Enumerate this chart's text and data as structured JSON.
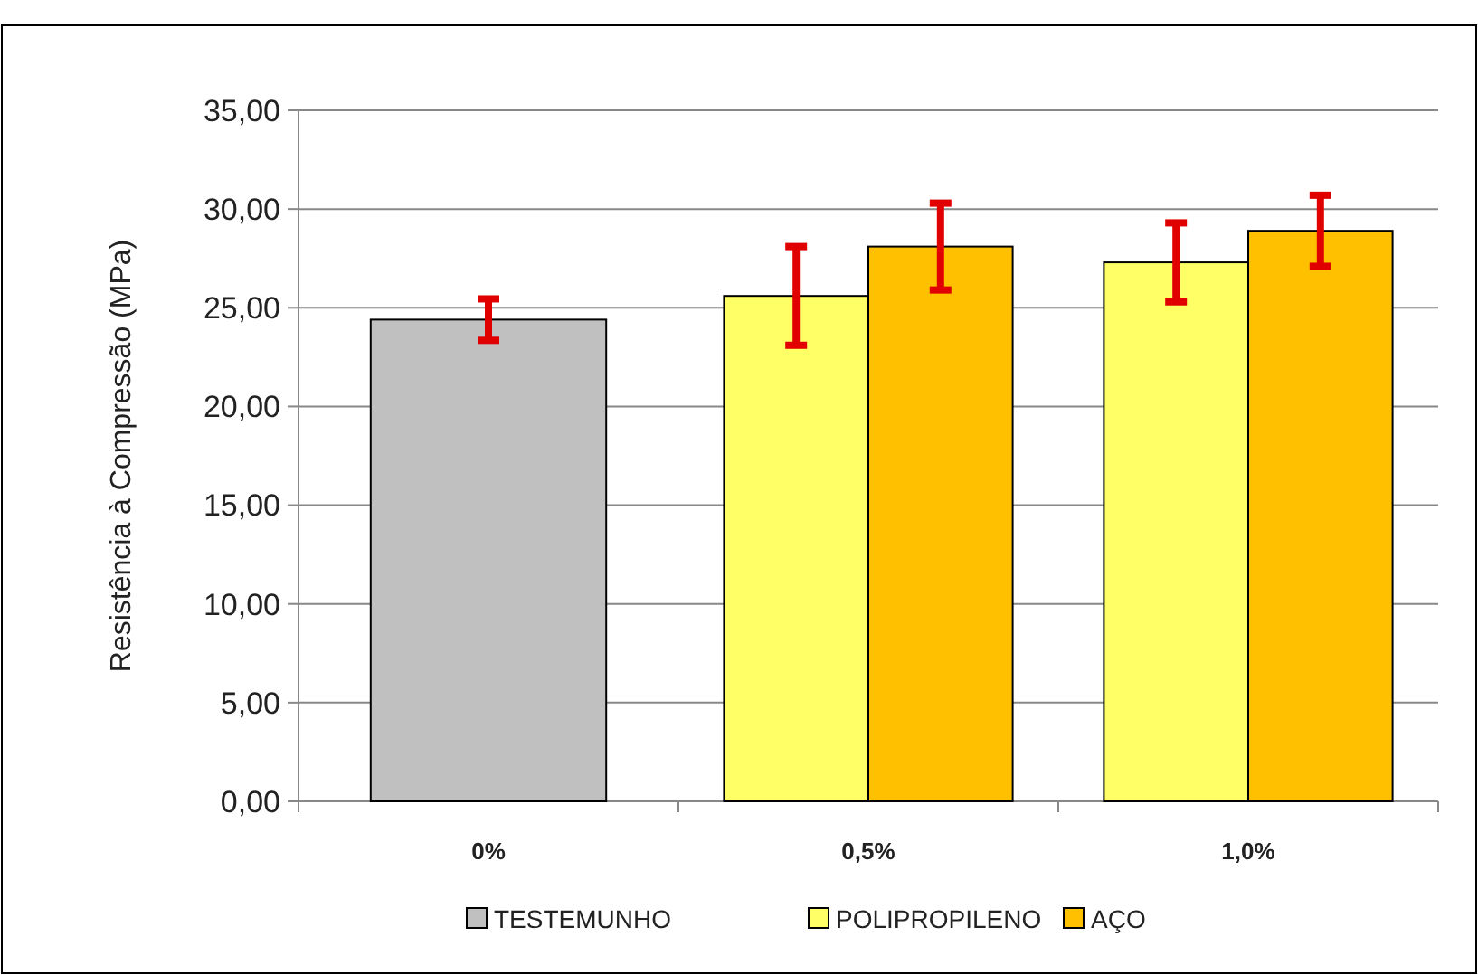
{
  "chart_data": {
    "type": "bar",
    "ylabel": "Resistência à Compressão (MPa)",
    "categories": [
      "0%",
      "0,5%",
      "1,0%"
    ],
    "series": [
      {
        "name": "TESTEMUNHO",
        "color": "#c0c0c0",
        "values": [
          24.4,
          null,
          null
        ],
        "errors": [
          1.05,
          null,
          null
        ]
      },
      {
        "name": "POLIPROPILENO",
        "color": "#ffff66",
        "values": [
          null,
          25.6,
          27.3
        ],
        "errors": [
          null,
          2.5,
          2.0
        ]
      },
      {
        "name": "AÇO",
        "color": "#ffc000",
        "values": [
          null,
          28.1,
          28.9
        ],
        "errors": [
          null,
          2.2,
          1.8
        ]
      }
    ],
    "ylim": [
      0,
      35
    ],
    "yticks": [
      {
        "value": 0,
        "label": "0,00"
      },
      {
        "value": 5,
        "label": "5,00"
      },
      {
        "value": 10,
        "label": "10,00"
      },
      {
        "value": 15,
        "label": "15,00"
      },
      {
        "value": 20,
        "label": "20,00"
      },
      {
        "value": 25,
        "label": "25,00"
      },
      {
        "value": 30,
        "label": "30,00"
      },
      {
        "value": 35,
        "label": "35,00"
      }
    ],
    "grid": "y",
    "legend": "bottom"
  }
}
